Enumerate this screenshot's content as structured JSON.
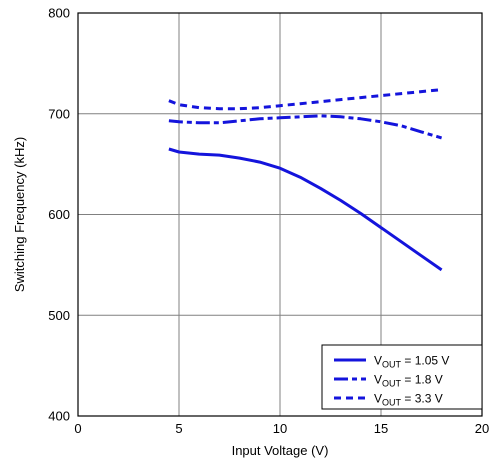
{
  "chart_data": {
    "type": "line",
    "xlabel": "Input Voltage (V)",
    "ylabel": "Switching Frequency (kHz)",
    "xlim": [
      0,
      20
    ],
    "ylim": [
      400,
      800
    ],
    "xticks": [
      0,
      5,
      10,
      15,
      20
    ],
    "yticks": [
      400,
      500,
      600,
      700,
      800
    ],
    "grid": true,
    "legend_position": "bottom-right",
    "series_color": "#1414dc",
    "series": [
      {
        "name": "V_OUT = 1.05 V",
        "legend": {
          "main": "V",
          "sub": "OUT",
          "rest": " = 1.05 V"
        },
        "dash": "solid",
        "x": [
          4.5,
          5.0,
          6.0,
          7.0,
          8.0,
          9.0,
          10.0,
          11.0,
          12.0,
          13.0,
          14.0,
          15.0,
          16.0,
          17.0,
          18.0
        ],
        "y": [
          665,
          662,
          660,
          659,
          656,
          652,
          646,
          637,
          626,
          614,
          601,
          587,
          573,
          559,
          545
        ]
      },
      {
        "name": "V_OUT = 1.8 V",
        "legend": {
          "main": "V",
          "sub": "OUT",
          "rest": " = 1.8 V"
        },
        "dash": "dashdot",
        "x": [
          4.5,
          5.0,
          6.0,
          7.0,
          8.0,
          9.0,
          10.0,
          11.0,
          12.0,
          13.0,
          14.0,
          15.0,
          16.0,
          17.0,
          18.0
        ],
        "y": [
          693,
          692,
          691,
          691,
          693,
          695,
          696,
          697,
          698,
          697,
          695,
          692,
          688,
          682,
          676
        ]
      },
      {
        "name": "V_OUT = 3.3 V",
        "legend": {
          "main": "V",
          "sub": "OUT",
          "rest": " = 3.3 V"
        },
        "dash": "dash",
        "x": [
          4.5,
          5.0,
          6.0,
          7.0,
          8.0,
          9.0,
          10.0,
          11.0,
          12.0,
          13.0,
          14.0,
          15.0,
          16.0,
          17.0,
          18.0
        ],
        "y": [
          713,
          709,
          706,
          705,
          705,
          706,
          708,
          710,
          712,
          714,
          716,
          718,
          720,
          722,
          724
        ]
      }
    ]
  }
}
